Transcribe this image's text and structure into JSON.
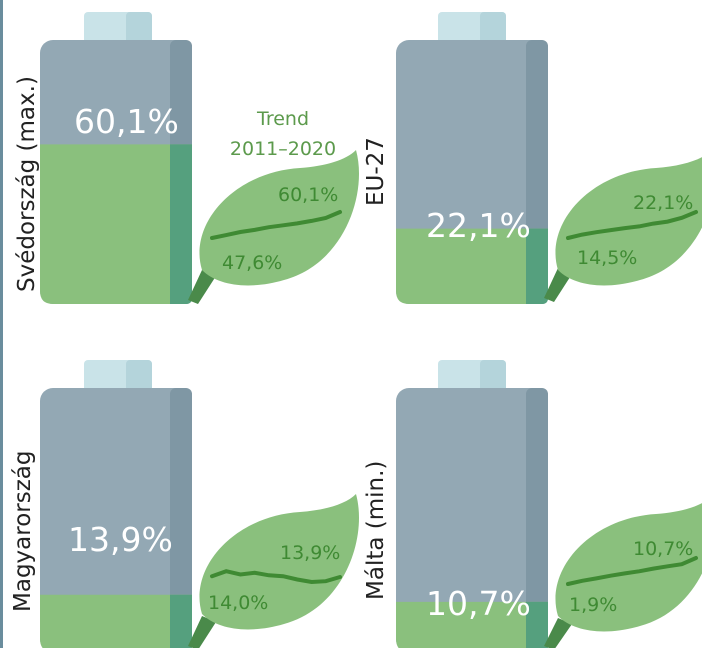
{
  "trend_label": {
    "line1": "Trend",
    "line2": "2011–2020"
  },
  "colors": {
    "battery_body": "#93a8b4",
    "battery_side": "#7f97a4",
    "battery_cap": "#c9e3e8",
    "battery_cap_shade": "#b4d4db",
    "fill": "#8ac07d",
    "fill_side": "#55a07e",
    "leaf": "#8ac07d",
    "leaf_stroke": "#3f8a33",
    "stem": "#4a8a4a"
  },
  "chart_data": [
    {
      "type": "bar",
      "country": "Svédország (max.)",
      "value": 60.1,
      "value_label": "60,1%",
      "trend": {
        "start_label": "47,6%",
        "end_label": "60,1%",
        "start": 47.6,
        "end": 60.1
      }
    },
    {
      "type": "bar",
      "country": "EU-27",
      "value": 22.1,
      "value_label": "22,1%",
      "trend": {
        "start_label": "14,5%",
        "end_label": "22,1%",
        "start": 14.5,
        "end": 22.1
      }
    },
    {
      "type": "bar",
      "country": "Magyarország",
      "value": 13.9,
      "value_label": "13,9%",
      "trend": {
        "start_label": "14,0%",
        "end_label": "13,9%",
        "start": 14.0,
        "end": 13.9
      }
    },
    {
      "type": "bar",
      "country": "Málta (min.)",
      "value": 10.7,
      "value_label": "10,7%",
      "trend": {
        "start_label": "1,9%",
        "end_label": "10,7%",
        "start": 1.9,
        "end": 10.7
      }
    }
  ]
}
